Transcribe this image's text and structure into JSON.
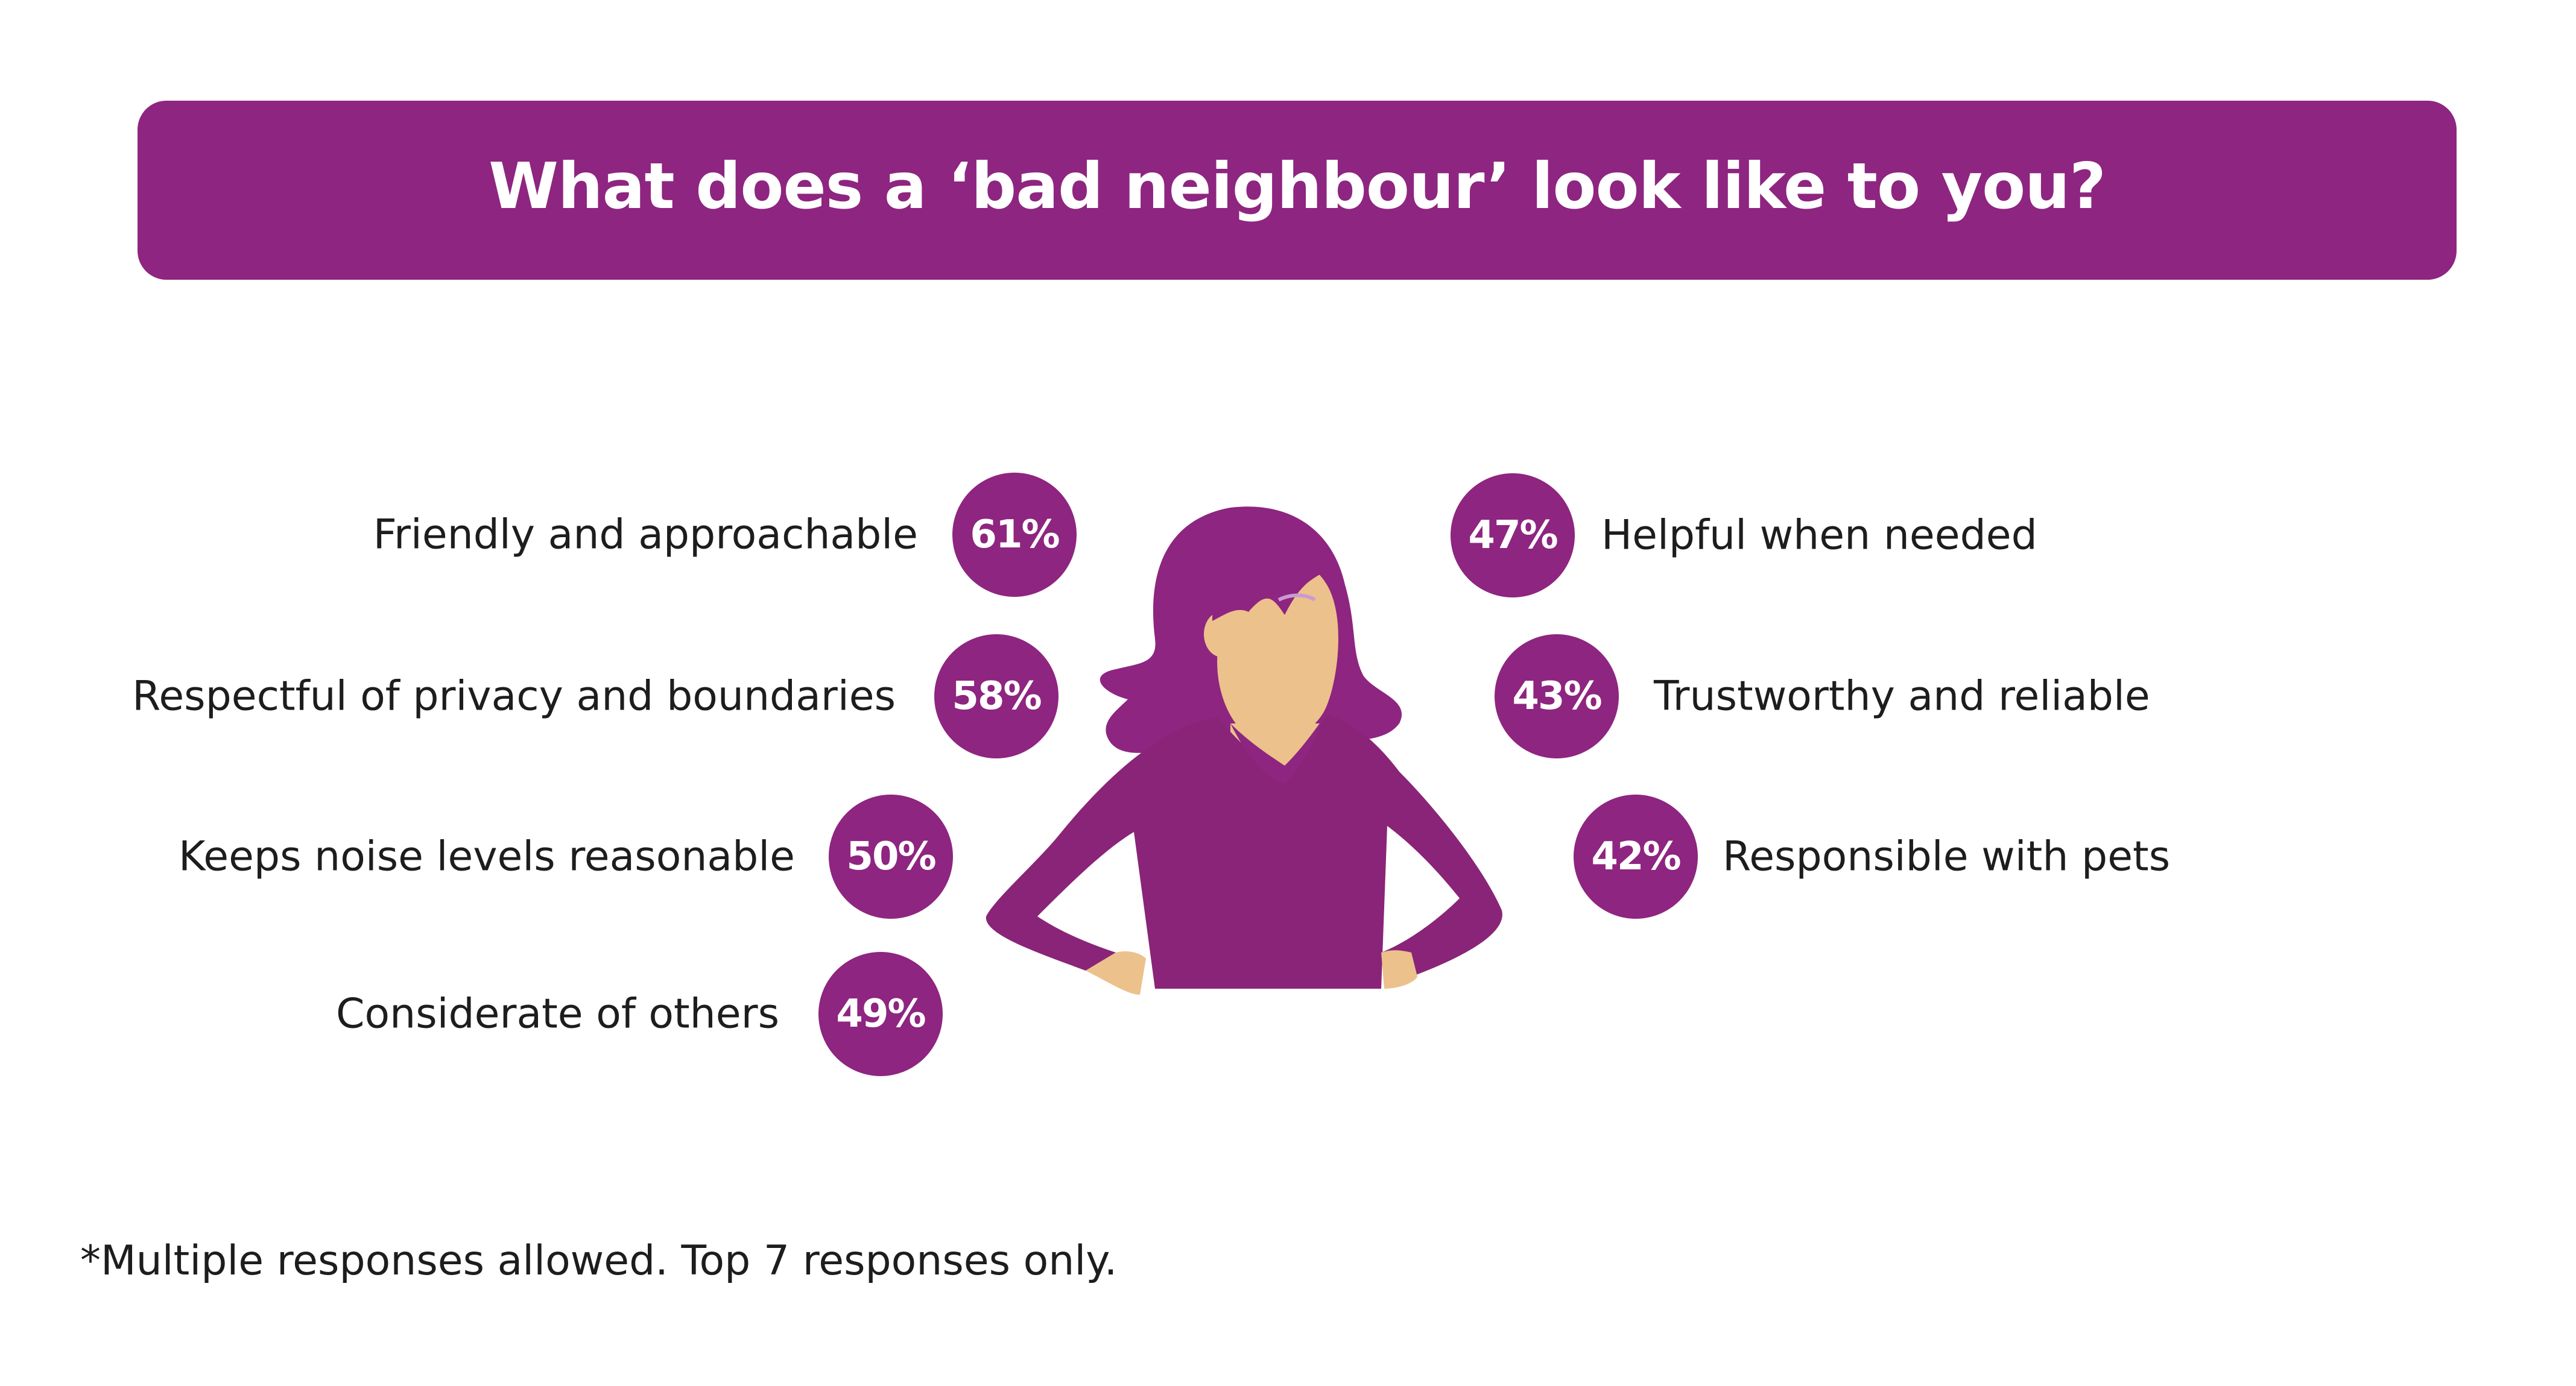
{
  "colors": {
    "accent": "#8e2580",
    "skin": "#ecc18b",
    "text": "#1d1d1d",
    "banner_text": "#ffffff"
  },
  "title": "What does a ‘bad neighbour’ look like to you?",
  "footnote": "*Multiple responses allowed. Top 7 responses only.",
  "chart_data": {
    "type": "bubble-list",
    "title": "What does a ‘bad neighbour’ look like to you?",
    "unit": "%",
    "items": [
      {
        "label": "Friendly and approachable",
        "value": 61,
        "display": "61%"
      },
      {
        "label": "Respectful of privacy and boundaries",
        "value": 58,
        "display": "58%"
      },
      {
        "label": "Keeps noise levels reasonable",
        "value": 50,
        "display": "50%"
      },
      {
        "label": "Considerate of others",
        "value": 49,
        "display": "49%"
      },
      {
        "label": "Helpful when needed",
        "value": 47,
        "display": "47%"
      },
      {
        "label": "Trustworthy and reliable",
        "value": 43,
        "display": "43%"
      },
      {
        "label": "Responsible with pets",
        "value": 42,
        "display": "42%"
      }
    ]
  },
  "figure": {
    "icon": "woman-hands-on-hips-illustration"
  }
}
